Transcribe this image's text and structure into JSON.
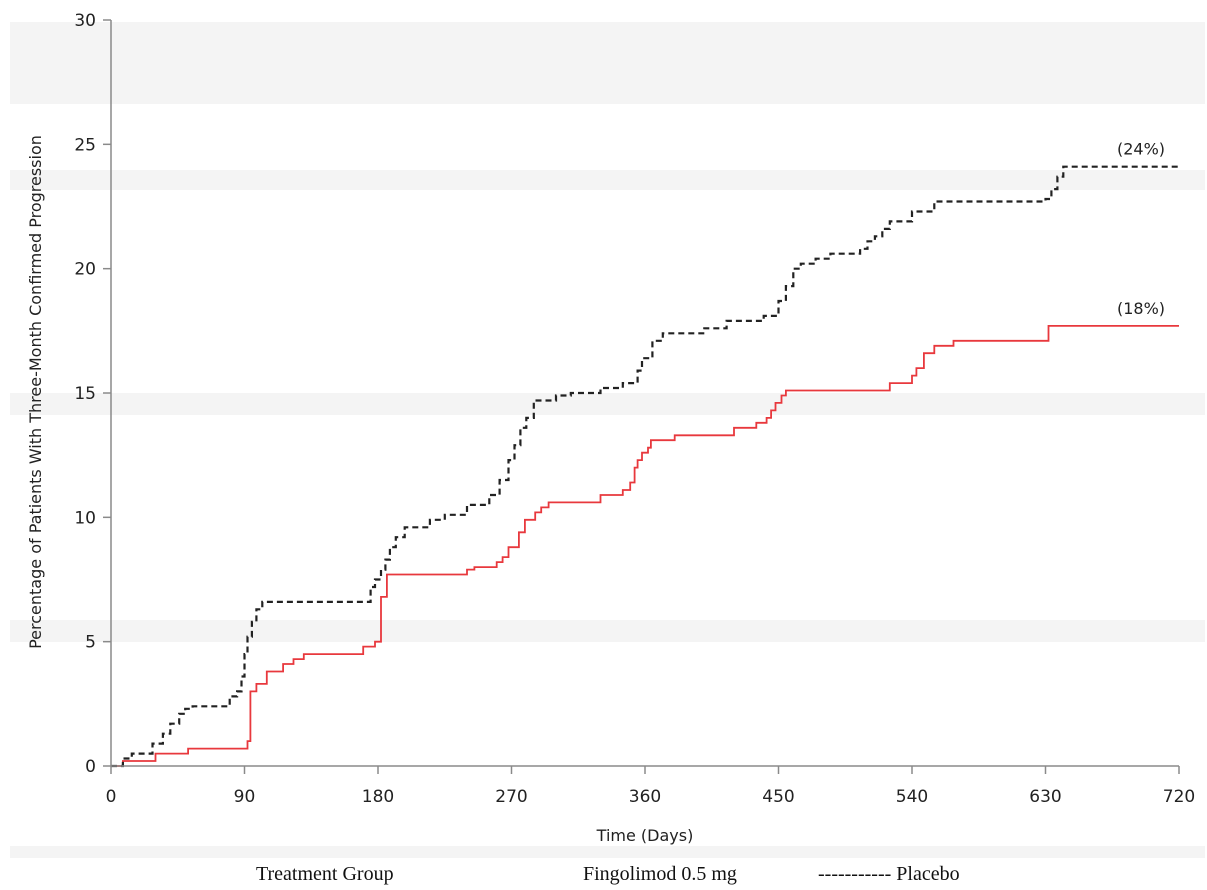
{
  "chart_data": {
    "type": "line",
    "xlabel": "Time (Days)",
    "ylabel": "Percentage of Patients With Three-Month Confirmed Progression",
    "xlim": [
      0,
      720
    ],
    "ylim": [
      0,
      30
    ],
    "xticks": [
      "0",
      "90",
      "180",
      "270",
      "360",
      "450",
      "540",
      "630",
      "720"
    ],
    "yticks": [
      "0",
      "5",
      "10",
      "15",
      "20",
      "25",
      "30"
    ],
    "grid": false,
    "legend": {
      "title": "Treatment Group",
      "entries": [
        "Fingolimod 0.5 mg",
        "----------- Placebo"
      ]
    },
    "series": [
      {
        "name": "Fingolimod 0.5 mg",
        "color": "#e8383d",
        "style": "step-solid",
        "end_label": "(18%)",
        "x": [
          0,
          8,
          30,
          52,
          92,
          94,
          98,
          105,
          116,
          123,
          130,
          170,
          178,
          182,
          186,
          240,
          245,
          260,
          264,
          268,
          275,
          279,
          286,
          290,
          295,
          330,
          345,
          350,
          353,
          355,
          358,
          362,
          364,
          370,
          380,
          412,
          420,
          435,
          442,
          445,
          448,
          452,
          455,
          460,
          525,
          540,
          543,
          548,
          555,
          568,
          630,
          632,
          720
        ],
        "y": [
          0,
          0.2,
          0.5,
          0.7,
          1.0,
          3.0,
          3.3,
          3.8,
          4.1,
          4.3,
          4.5,
          4.8,
          5.0,
          6.8,
          7.7,
          7.9,
          8.0,
          8.2,
          8.4,
          8.8,
          9.4,
          9.9,
          10.2,
          10.4,
          10.6,
          10.9,
          11.1,
          11.4,
          12.0,
          12.3,
          12.6,
          12.8,
          13.1,
          13.1,
          13.3,
          13.3,
          13.6,
          13.8,
          14.0,
          14.3,
          14.6,
          14.9,
          15.1,
          15.1,
          15.4,
          15.7,
          16.0,
          16.6,
          16.9,
          17.1,
          17.1,
          17.7,
          17.7
        ]
      },
      {
        "name": "Placebo",
        "color": "#222222",
        "style": "step-dashed",
        "end_label": "(24%)",
        "x": [
          0,
          8,
          14,
          28,
          35,
          40,
          46,
          50,
          55,
          80,
          85,
          88,
          90,
          92,
          95,
          98,
          102,
          170,
          175,
          178,
          182,
          185,
          188,
          192,
          198,
          215,
          225,
          240,
          255,
          262,
          268,
          272,
          276,
          280,
          285,
          300,
          310,
          330,
          345,
          355,
          358,
          365,
          372,
          400,
          415,
          425,
          440,
          450,
          455,
          460,
          465,
          475,
          485,
          505,
          510,
          515,
          520,
          525,
          540,
          555,
          580,
          630,
          634,
          638,
          642,
          720
        ],
        "y": [
          0,
          0.3,
          0.5,
          0.9,
          1.3,
          1.7,
          2.1,
          2.3,
          2.4,
          2.8,
          3.0,
          3.6,
          4.5,
          5.2,
          5.8,
          6.3,
          6.6,
          6.6,
          7.2,
          7.5,
          7.9,
          8.3,
          8.8,
          9.2,
          9.6,
          9.9,
          10.1,
          10.5,
          10.9,
          11.5,
          12.3,
          12.9,
          13.6,
          14.0,
          14.7,
          14.9,
          15.0,
          15.2,
          15.4,
          15.9,
          16.4,
          17.1,
          17.4,
          17.6,
          17.9,
          17.9,
          18.1,
          18.7,
          19.3,
          20.0,
          20.2,
          20.4,
          20.6,
          20.8,
          21.1,
          21.3,
          21.6,
          21.9,
          22.3,
          22.7,
          22.7,
          22.8,
          23.2,
          23.7,
          24.1,
          24.1
        ]
      }
    ]
  }
}
